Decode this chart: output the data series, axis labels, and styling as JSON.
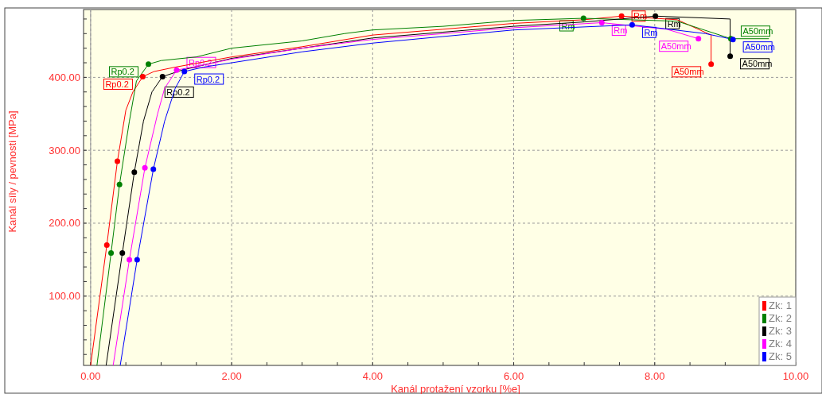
{
  "chart_data": {
    "type": "line",
    "xlabel": "Kanál protažení vzorku  [%e]",
    "ylabel": "Kanál síly / pevnosti  [MPa]",
    "xlim": [
      -0.1,
      10
    ],
    "ylim": [
      5,
      493
    ],
    "xticks": [
      {
        "value": 0,
        "label": "0.00"
      },
      {
        "value": 0.5,
        "label": null
      },
      {
        "value": 1,
        "label": null
      },
      {
        "value": 1.5,
        "label": null
      },
      {
        "value": 2,
        "label": "2.00"
      },
      {
        "value": 2.5,
        "label": null
      },
      {
        "value": 3,
        "label": null
      },
      {
        "value": 3.5,
        "label": null
      },
      {
        "value": 4,
        "label": "4.00"
      },
      {
        "value": 4.5,
        "label": null
      },
      {
        "value": 5,
        "label": null
      },
      {
        "value": 5.5,
        "label": null
      },
      {
        "value": 6,
        "label": "6.00"
      },
      {
        "value": 6.5,
        "label": null
      },
      {
        "value": 7,
        "label": null
      },
      {
        "value": 7.5,
        "label": null
      },
      {
        "value": 8,
        "label": "8.00"
      },
      {
        "value": 8.5,
        "label": null
      },
      {
        "value": 9,
        "label": null
      },
      {
        "value": 9.5,
        "label": null
      },
      {
        "value": 10,
        "label": "10.00"
      }
    ],
    "yticks": [
      {
        "value": 20,
        "label": null
      },
      {
        "value": 40,
        "label": null
      },
      {
        "value": 60,
        "label": null
      },
      {
        "value": 80,
        "label": null
      },
      {
        "value": 100,
        "label": "100.00"
      },
      {
        "value": 120,
        "label": null
      },
      {
        "value": 140,
        "label": null
      },
      {
        "value": 160,
        "label": null
      },
      {
        "value": 180,
        "label": null
      },
      {
        "value": 200,
        "label": "200.00"
      },
      {
        "value": 220,
        "label": null
      },
      {
        "value": 240,
        "label": null
      },
      {
        "value": 260,
        "label": null
      },
      {
        "value": 280,
        "label": null
      },
      {
        "value": 300,
        "label": "300.00"
      },
      {
        "value": 320,
        "label": null
      },
      {
        "value": 340,
        "label": null
      },
      {
        "value": 360,
        "label": null
      },
      {
        "value": 380,
        "label": null
      },
      {
        "value": 400,
        "label": "400.00"
      },
      {
        "value": 420,
        "label": null
      },
      {
        "value": 440,
        "label": null
      },
      {
        "value": 460,
        "label": null
      },
      {
        "value": 480,
        "label": null
      }
    ],
    "grid": true,
    "legend": "bottom right",
    "ref_lines": [
      {
        "axis": "x",
        "value": 0,
        "color": "#a0a0a0"
      }
    ],
    "series": [
      {
        "name": "Zk: 1",
        "color": "#ff0000",
        "x": [
          0,
          0.23,
          0.38,
          0.5,
          0.6,
          0.74,
          0.9,
          1.2,
          2,
          3,
          4,
          5,
          6,
          7,
          7.53,
          8.32,
          8.8,
          8.8
        ],
        "values": [
          5,
          170,
          285,
          355,
          380,
          401,
          408,
          414,
          428,
          442,
          458,
          466,
          474,
          479,
          484,
          479,
          458,
          418
        ]
      },
      {
        "name": "Zk: 2",
        "color": "#008000",
        "x": [
          0.09,
          0.29,
          0.41,
          0.55,
          0.65,
          0.82,
          1,
          1.5,
          2,
          3,
          3.6,
          4,
          5,
          6,
          6.99,
          8.32,
          9.08,
          9.62
        ],
        "values": [
          5,
          159,
          253,
          340,
          395,
          418,
          423,
          428,
          440,
          450,
          460,
          465,
          470,
          478,
          481,
          477,
          453,
          453
        ]
      },
      {
        "name": "Zk: 3",
        "color": "#000000",
        "x": [
          0.22,
          0.45,
          0.62,
          0.75,
          0.87,
          1.02,
          1.3,
          2,
          3,
          4,
          5,
          6,
          7,
          8.01,
          9.07,
          9.07
        ],
        "values": [
          5,
          159,
          270,
          340,
          380,
          401,
          410,
          426,
          440,
          454,
          462,
          470,
          476,
          484,
          480,
          429
        ]
      },
      {
        "name": "Zk: 4",
        "color": "#ff00ff",
        "x": [
          0.32,
          0.55,
          0.77,
          0.95,
          1.05,
          1.22,
          1.5,
          2,
          3,
          4,
          5,
          6,
          7.25,
          8.17,
          8.62
        ],
        "values": [
          5,
          150,
          276,
          350,
          385,
          410,
          415,
          425,
          440,
          452,
          460,
          468,
          475,
          466,
          453
        ]
      },
      {
        "name": "Zk: 5",
        "color": "#0000ff",
        "x": [
          0.42,
          0.66,
          0.89,
          1.05,
          1.2,
          1.33,
          1.6,
          2,
          3,
          4,
          5,
          6,
          7.68,
          8.72,
          9.11
        ],
        "values": [
          5,
          150,
          274,
          340,
          385,
          408,
          414,
          420,
          435,
          447,
          456,
          465,
          472,
          460,
          452
        ]
      },
      {
        "type": "scatter",
        "color": "#ff0000",
        "x": [
          0.23,
          0.38,
          0.74,
          7.53,
          8.8
        ],
        "values": [
          170,
          285,
          401,
          484,
          418
        ],
        "value_labels": [
          null,
          null,
          "Rp0.2",
          "Rm",
          "A50mm"
        ]
      },
      {
        "type": "scatter",
        "color": "#008000",
        "x": [
          0.29,
          0.41,
          0.82,
          6.99,
          9.08
        ],
        "values": [
          159,
          253,
          418,
          481,
          453
        ],
        "value_labels": [
          null,
          null,
          "Rp0.2",
          "Rm",
          "A50mm"
        ]
      },
      {
        "type": "scatter",
        "color": "#000000",
        "x": [
          0.45,
          0.62,
          1.02,
          8.01,
          9.07
        ],
        "values": [
          159,
          270,
          401,
          484,
          429
        ],
        "value_labels": [
          null,
          null,
          "Rp0.2",
          "Rm",
          "A50mm"
        ]
      },
      {
        "type": "scatter",
        "color": "#ff00ff",
        "x": [
          0.55,
          0.77,
          1.22,
          7.25,
          8.62
        ],
        "values": [
          150,
          276,
          410,
          475,
          453
        ],
        "value_labels": [
          null,
          null,
          "Rp0.2",
          "Rm",
          "A50mm"
        ]
      },
      {
        "type": "scatter",
        "color": "#0000ff",
        "x": [
          0.66,
          0.89,
          1.33,
          7.68,
          9.11
        ],
        "values": [
          150,
          274,
          408,
          472,
          452
        ],
        "value_labels": [
          null,
          null,
          "Rp0.2",
          "Rm",
          "A50mm"
        ]
      }
    ]
  }
}
